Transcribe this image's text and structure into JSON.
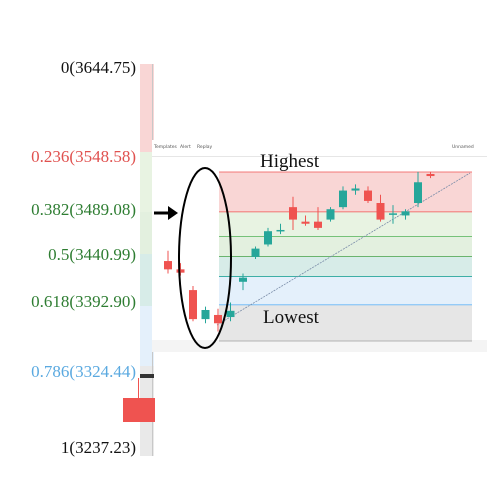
{
  "chart_data": {
    "type": "candlestick",
    "levels": [
      {
        "ratio": "0",
        "price": "3644.75",
        "label": "0(3644.75)",
        "color": "#111111"
      },
      {
        "ratio": "0.236",
        "price": "3548.58",
        "label": "0.236(3548.58)",
        "color": "#e0514f"
      },
      {
        "ratio": "0.382",
        "price": "3489.08",
        "label": "0.382(3489.08)",
        "color": "#2e7d32"
      },
      {
        "ratio": "0.5",
        "price": "3440.99",
        "label": "0.5(3440.99)",
        "color": "#2e7d32"
      },
      {
        "ratio": "0.618",
        "price": "3392.90",
        "label": "0.618(3392.90)",
        "color": "#2e7d32"
      },
      {
        "ratio": "0.786",
        "price": "3324.44",
        "label": "0.786(3324.44)",
        "color": "#5aa9e0"
      },
      {
        "ratio": "1",
        "price": "3237.23",
        "label": "1(3237.23)",
        "color": "#111111"
      }
    ],
    "annotations": {
      "highest": "Highest",
      "lowest": "Lowest"
    },
    "candles": [
      {
        "o": 3430,
        "h": 3455,
        "l": 3400,
        "c": 3410
      },
      {
        "o": 3410,
        "h": 3425,
        "l": 3395,
        "c": 3402
      },
      {
        "o": 3360,
        "h": 3370,
        "l": 3285,
        "c": 3290
      },
      {
        "o": 3290,
        "h": 3320,
        "l": 3280,
        "c": 3312
      },
      {
        "o": 3300,
        "h": 3315,
        "l": 3260,
        "c": 3280
      },
      {
        "o": 3295,
        "h": 3330,
        "l": 3285,
        "c": 3310
      },
      {
        "o": 3380,
        "h": 3400,
        "l": 3360,
        "c": 3390
      },
      {
        "o": 3440,
        "h": 3465,
        "l": 3435,
        "c": 3460
      },
      {
        "o": 3470,
        "h": 3510,
        "l": 3465,
        "c": 3502
      },
      {
        "o": 3502,
        "h": 3520,
        "l": 3495,
        "c": 3505
      },
      {
        "o": 3560,
        "h": 3585,
        "l": 3505,
        "c": 3530
      },
      {
        "o": 3525,
        "h": 3540,
        "l": 3515,
        "c": 3520
      },
      {
        "o": 3525,
        "h": 3560,
        "l": 3505,
        "c": 3510
      },
      {
        "o": 3530,
        "h": 3560,
        "l": 3525,
        "c": 3555
      },
      {
        "o": 3560,
        "h": 3610,
        "l": 3555,
        "c": 3600
      },
      {
        "o": 3600,
        "h": 3615,
        "l": 3590,
        "c": 3605
      },
      {
        "o": 3600,
        "h": 3610,
        "l": 3570,
        "c": 3575
      },
      {
        "o": 3570,
        "h": 3590,
        "l": 3525,
        "c": 3530
      },
      {
        "o": 3545,
        "h": 3565,
        "l": 3520,
        "c": 3545
      },
      {
        "o": 3540,
        "h": 3555,
        "l": 3530,
        "c": 3550
      },
      {
        "o": 3570,
        "h": 3645,
        "l": 3560,
        "c": 3620
      },
      {
        "o": 3640,
        "h": 3645,
        "l": 3630,
        "c": 3635
      }
    ],
    "colors": {
      "up": "#26a69a",
      "down": "#ef5350"
    }
  }
}
